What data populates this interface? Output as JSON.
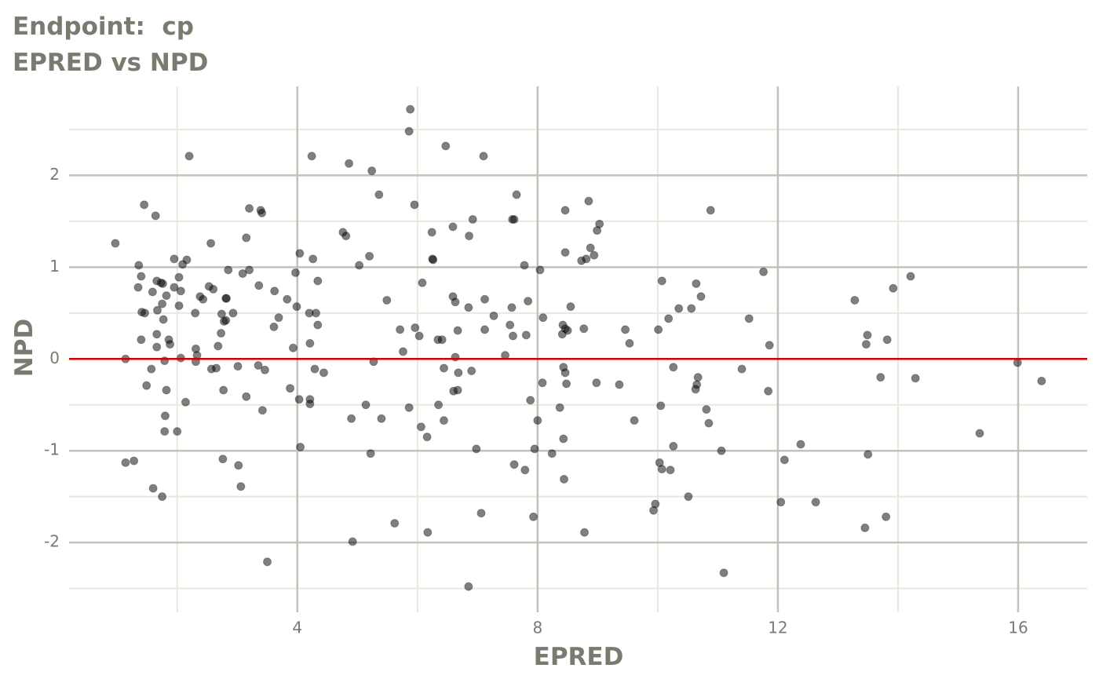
{
  "chart_data": {
    "type": "scatter",
    "title": "Endpoint:  cp",
    "subtitle": "EPRED vs NPD",
    "x_label": "EPRED",
    "y_label": "NPD",
    "xlim": [
      0.2,
      17.15
    ],
    "ylim": [
      -2.76,
      2.97
    ],
    "xticks": [
      4,
      8,
      12,
      16
    ],
    "yticks": [
      -2,
      -1,
      0,
      1,
      2
    ],
    "x_minor_grid": [
      2,
      6,
      10,
      14
    ],
    "y_minor_grid": [
      -2.5,
      -1.5,
      -0.5,
      0.5,
      1.5,
      2.5
    ],
    "grid": true,
    "color": "#000000",
    "opacity": 0.5,
    "reference_line": {
      "value": 0,
      "color": "#d40000"
    },
    "x": [
      0.97,
      1.14,
      1.14,
      1.28,
      1.36,
      1.35,
      1.4,
      1.45,
      1.41,
      1.46,
      1.4,
      1.49,
      1.57,
      1.59,
      1.6,
      1.64,
      1.66,
      1.66,
      1.67,
      1.66,
      1.73,
      1.75,
      1.76,
      1.77,
      1.75,
      1.79,
      1.8,
      1.79,
      1.82,
      1.82,
      1.86,
      1.88,
      1.95,
      1.95,
      2.0,
      2.03,
      2.03,
      2.06,
      2.09,
      2.06,
      2.16,
      2.14,
      2.2,
      2.3,
      2.31,
      2.33,
      2.31,
      2.38,
      2.43,
      2.53,
      2.56,
      2.6,
      2.57,
      2.65,
      2.68,
      2.73,
      2.74,
      2.76,
      2.77,
      2.78,
      2.81,
      2.81,
      2.82,
      2.85,
      2.93,
      3.01,
      3.02,
      3.06,
      3.09,
      3.15,
      3.15,
      3.2,
      3.2,
      3.35,
      3.36,
      3.39,
      3.41,
      3.42,
      3.46,
      3.5,
      3.61,
      3.62,
      3.69,
      3.83,
      3.88,
      3.93,
      3.97,
      3.99,
      4.03,
      4.04,
      4.05,
      4.2,
      4.21,
      4.21,
      4.21,
      4.24,
      4.26,
      4.29,
      4.31,
      4.34,
      4.34,
      4.44,
      4.76,
      4.81,
      4.86,
      4.9,
      4.92,
      5.03,
      5.14,
      5.2,
      5.22,
      5.24,
      5.27,
      5.36,
      5.4,
      5.49,
      5.62,
      5.71,
      5.76,
      5.86,
      5.86,
      5.88,
      5.95,
      5.96,
      6.03,
      6.06,
      6.08,
      6.16,
      6.17,
      6.24,
      6.25,
      6.26,
      6.34,
      6.35,
      6.41,
      6.44,
      6.44,
      6.47,
      6.59,
      6.59,
      6.6,
      6.63,
      6.63,
      6.67,
      6.67,
      6.68,
      6.85,
      6.85,
      6.86,
      6.9,
      6.92,
      6.98,
      7.06,
      7.1,
      7.12,
      7.12,
      7.27,
      7.46,
      7.54,
      7.57,
      7.58,
      7.61,
      7.59,
      7.61,
      7.65,
      7.78,
      7.79,
      7.81,
      7.84,
      7.88,
      7.93,
      7.95,
      8.0,
      8.04,
      8.08,
      8.09,
      8.24,
      8.37,
      8.41,
      8.42,
      8.43,
      8.43,
      8.44,
      8.46,
      8.46,
      8.46,
      8.46,
      8.5,
      8.48,
      8.55,
      8.73,
      8.78,
      8.77,
      8.81,
      8.85,
      8.88,
      8.94,
      8.98,
      8.99,
      9.03,
      9.36,
      9.46,
      9.53,
      9.61,
      9.93,
      9.96,
      10.01,
      10.03,
      10.05,
      10.07,
      10.07,
      10.18,
      10.21,
      10.26,
      10.26,
      10.35,
      10.51,
      10.56,
      10.64,
      10.63,
      10.65,
      10.67,
      10.72,
      10.81,
      10.85,
      10.88,
      11.06,
      11.1,
      11.4,
      11.52,
      11.76,
      11.86,
      11.84,
      12.05,
      12.11,
      12.38,
      12.63,
      13.28,
      13.45,
      13.47,
      13.49,
      13.5,
      13.71,
      13.8,
      13.82,
      13.92,
      14.21,
      14.29,
      15.36,
      15.99,
      16.39
    ],
    "values": [
      1.26,
      0.0,
      -1.13,
      -1.11,
      1.02,
      0.78,
      0.9,
      1.68,
      0.51,
      0.5,
      0.21,
      -0.29,
      -0.11,
      0.73,
      -1.41,
      1.56,
      0.27,
      0.13,
      0.53,
      0.85,
      0.83,
      0.6,
      0.82,
      0.43,
      -1.5,
      -0.02,
      -0.62,
      -0.79,
      -0.34,
      0.69,
      0.21,
      0.16,
      1.09,
      0.78,
      -0.79,
      0.58,
      0.89,
      0.74,
      1.03,
      0.01,
      1.08,
      -0.47,
      2.21,
      0.5,
      0.11,
      0.04,
      -0.03,
      0.68,
      0.65,
      0.79,
      1.26,
      0.76,
      -0.11,
      -0.1,
      0.14,
      0.28,
      0.49,
      -1.09,
      -0.34,
      0.41,
      0.42,
      0.66,
      0.66,
      0.97,
      0.5,
      -0.08,
      -1.16,
      -1.39,
      0.93,
      1.32,
      -0.41,
      1.64,
      0.97,
      -0.07,
      0.8,
      1.62,
      1.59,
      -0.56,
      -0.12,
      -2.21,
      0.35,
      0.74,
      0.45,
      0.65,
      -0.32,
      0.12,
      0.94,
      0.57,
      -0.44,
      1.15,
      -0.96,
      0.5,
      0.17,
      -0.44,
      -0.49,
      2.21,
      1.09,
      -0.11,
      0.5,
      0.37,
      0.85,
      -0.15,
      1.38,
      1.34,
      2.13,
      -0.65,
      -1.99,
      1.02,
      -0.5,
      1.12,
      -1.03,
      2.05,
      -0.03,
      1.79,
      -0.65,
      0.64,
      -1.79,
      0.32,
      0.08,
      2.48,
      -0.53,
      2.72,
      1.68,
      0.34,
      0.25,
      -0.74,
      0.83,
      -0.85,
      -1.89,
      1.38,
      1.09,
      1.08,
      0.21,
      -0.5,
      0.21,
      -0.1,
      -0.67,
      2.32,
      1.44,
      0.68,
      -0.35,
      0.02,
      0.62,
      0.31,
      -0.34,
      -0.15,
      -2.48,
      0.56,
      1.34,
      -0.13,
      1.52,
      -0.98,
      -1.68,
      2.21,
      0.32,
      0.65,
      0.47,
      0.04,
      0.37,
      0.56,
      1.52,
      1.52,
      0.25,
      -1.15,
      1.79,
      1.02,
      -1.21,
      0.26,
      0.63,
      -0.45,
      -1.72,
      -0.98,
      -0.67,
      0.97,
      -0.26,
      0.45,
      -1.03,
      -0.53,
      0.27,
      0.37,
      -0.09,
      -0.87,
      -1.31,
      1.62,
      1.16,
      -0.15,
      0.33,
      0.31,
      -0.27,
      0.57,
      1.07,
      -1.89,
      0.33,
      1.09,
      1.72,
      1.21,
      1.13,
      -0.26,
      1.4,
      1.47,
      -0.28,
      0.32,
      0.17,
      -0.67,
      -1.65,
      -1.58,
      0.32,
      -1.13,
      -0.51,
      0.85,
      -1.2,
      0.44,
      -1.21,
      -0.95,
      -0.09,
      0.55,
      -1.5,
      0.55,
      0.82,
      -0.33,
      -0.28,
      -0.2,
      0.68,
      -0.55,
      -0.7,
      1.62,
      -1.0,
      -2.33,
      -0.11,
      0.44,
      0.95,
      0.15,
      -0.35,
      -1.56,
      -1.1,
      -0.93,
      -1.56,
      0.64,
      -1.84,
      0.16,
      0.26,
      -1.04,
      -0.2,
      -1.72,
      0.21,
      0.77,
      0.9,
      -0.21,
      -0.81,
      -0.04,
      -0.24
    ]
  }
}
